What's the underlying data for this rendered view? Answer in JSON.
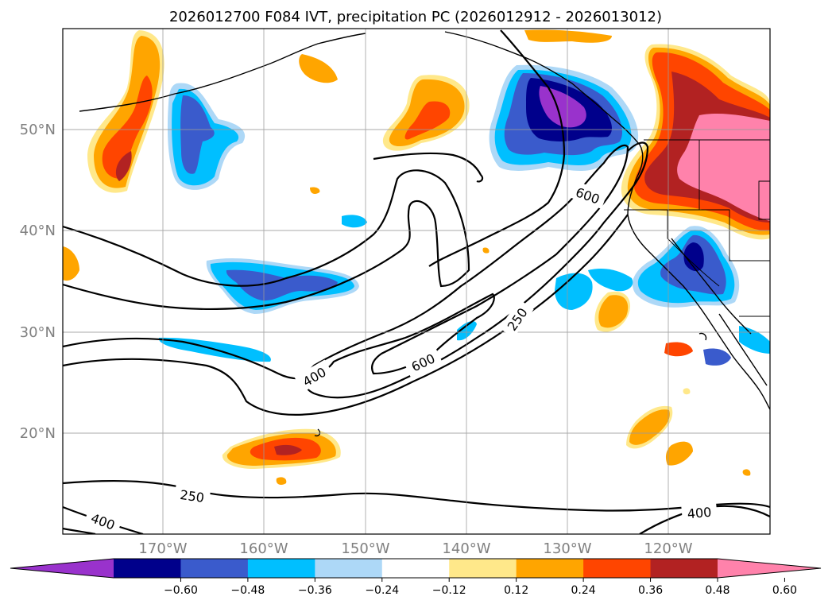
{
  "chart_data": {
    "type": "map",
    "title": "2026012700 F084 IVT, precipitation PC (2026012912 - 2026013012)",
    "lat_labels": [
      "50°N",
      "40°N",
      "30°N",
      "20°N"
    ],
    "lon_labels": [
      "170°W",
      "160°W",
      "150°W",
      "140°W",
      "130°W",
      "120°W"
    ],
    "grid": true,
    "colorbar": {
      "orientation": "horizontal",
      "extend": "both",
      "levels": [
        -0.6,
        -0.48,
        -0.36,
        -0.24,
        -0.12,
        0.12,
        0.24,
        0.36,
        0.48,
        0.6
      ],
      "tick_labels": [
        "−0.60",
        "−0.48",
        "−0.36",
        "−0.24",
        "−0.12",
        "0.12",
        "0.24",
        "0.36",
        "0.48",
        "0.60"
      ],
      "colors": [
        "#9932cc",
        "#00008b",
        "#3a5bcc",
        "#00bfff",
        "#add8f7",
        "#ffffff",
        "#ffe88a",
        "#ffa500",
        "#ff4500",
        "#b22222",
        "#ff82ab"
      ]
    },
    "contour_levels": [
      250,
      400,
      600
    ],
    "contour_labels": [
      "600",
      "400",
      "600",
      "250",
      "250",
      "400",
      "400"
    ]
  }
}
